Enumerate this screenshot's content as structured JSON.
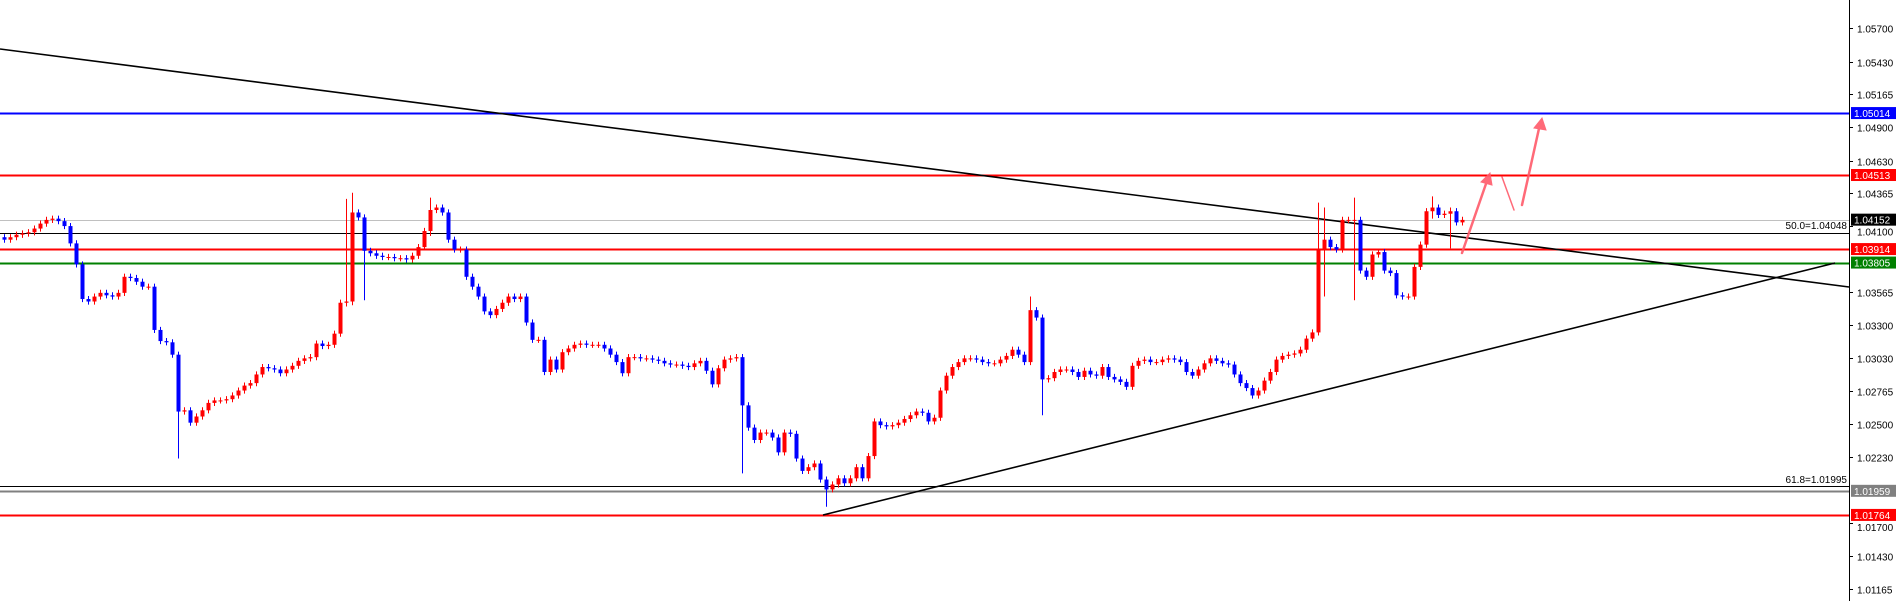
{
  "chart_data": {
    "type": "candlestick",
    "up_color": "#ff0000",
    "down_color": "#0000ff",
    "ylim": [
      1.0105,
      1.059
    ],
    "grid": false,
    "y_ticks": [
      "1.05700",
      "1.05430",
      "1.05165",
      "1.04900",
      "1.04630",
      "1.04365",
      "1.04100",
      "1.03565",
      "1.03300",
      "1.03030",
      "1.02765",
      "1.02500",
      "1.02230",
      "1.01700",
      "1.01430",
      "1.01165"
    ],
    "close": [
      1.0399,
      1.0401,
      1.0403,
      1.0404,
      1.0405,
      1.0408,
      1.0412,
      1.0415,
      1.0416,
      1.0414,
      1.041,
      1.0396,
      1.0379,
      1.0351,
      1.0349,
      1.0353,
      1.0356,
      1.0354,
      1.0353,
      1.0356,
      1.0369,
      1.0368,
      1.0365,
      1.0361,
      1.0361,
      1.0326,
      1.0317,
      1.0316,
      1.0306,
      1.026,
      1.0261,
      1.0251,
      1.0256,
      1.0261,
      1.0267,
      1.0269,
      1.0269,
      1.027,
      1.0273,
      1.0277,
      1.0281,
      1.0283,
      1.029,
      1.0296,
      1.0295,
      1.0294,
      1.0291,
      1.0294,
      1.0297,
      1.0301,
      1.0303,
      1.0304,
      1.0315,
      1.0313,
      1.0314,
      1.0323,
      1.0348,
      1.0349,
      1.0421,
      1.0417,
      1.039,
      1.0388,
      1.0386,
      1.0385,
      1.0385,
      1.0384,
      1.0384,
      1.0383,
      1.0386,
      1.0393,
      1.0406,
      1.0423,
      1.0425,
      1.0421,
      1.0399,
      1.0391,
      1.0391,
      1.0369,
      1.0361,
      1.0353,
      1.0341,
      1.0338,
      1.0343,
      1.0348,
      1.0353,
      1.0351,
      1.0353,
      1.0332,
      1.0318,
      1.0318,
      1.0292,
      1.0302,
      1.0294,
      1.0308,
      1.0311,
      1.0314,
      1.0315,
      1.0314,
      1.0314,
      1.0314,
      1.0311,
      1.0306,
      1.03,
      1.0291,
      1.0304,
      1.0304,
      1.0303,
      1.0303,
      1.0302,
      1.0301,
      1.0299,
      1.0298,
      1.0298,
      1.0297,
      1.0296,
      1.0299,
      1.0301,
      1.0293,
      1.0282,
      1.0295,
      1.0302,
      1.0303,
      1.0304,
      1.0265,
      1.0247,
      1.0237,
      1.0243,
      1.0243,
      1.0239,
      1.0227,
      1.0243,
      1.0242,
      1.0222,
      1.0212,
      1.0215,
      1.0218,
      1.0205,
      1.0197,
      1.0201,
      1.0206,
      1.0202,
      1.0206,
      1.0215,
      1.0206,
      1.0224,
      1.0252,
      1.0249,
      1.0248,
      1.0249,
      1.0251,
      1.0254,
      1.0257,
      1.026,
      1.0259,
      1.0252,
      1.0255,
      1.0277,
      1.0289,
      1.0296,
      1.03,
      1.0303,
      1.0303,
      1.0302,
      1.03,
      1.0299,
      1.0299,
      1.0302,
      1.0305,
      1.031,
      1.0306,
      1.03,
      1.0342,
      1.0336,
      1.0286,
      1.0287,
      1.0292,
      1.0294,
      1.0294,
      1.0292,
      1.0288,
      1.0293,
      1.029,
      1.0289,
      1.0296,
      1.0288,
      1.0286,
      1.0284,
      1.028,
      1.0297,
      1.0301,
      1.0302,
      1.03,
      1.03,
      1.0302,
      1.0303,
      1.0302,
      1.03,
      1.0292,
      1.0289,
      1.0294,
      1.0299,
      1.0303,
      1.0301,
      1.0299,
      1.0298,
      1.029,
      1.0283,
      1.0279,
      1.0273,
      1.0277,
      1.0285,
      1.0292,
      1.0302,
      1.0305,
      1.0306,
      1.0307,
      1.031,
      1.0319,
      1.0324,
      1.0391,
      1.0399,
      1.0393,
      1.0391,
      1.0415,
      1.0415,
      1.0415,
      1.0374,
      1.0369,
      1.0387,
      1.0389,
      1.0374,
      1.0372,
      1.0354,
      1.0353,
      1.0353,
      1.0377,
      1.0395,
      1.0422,
      1.0425,
      1.0419,
      1.042,
      1.0422,
      1.0413,
      1.0415
    ],
    "wick_extremes": [
      {
        "index": 29,
        "high": 1.0262,
        "low": 1.0222
      },
      {
        "index": 57,
        "high": 1.0432,
        "low": 1.0345
      },
      {
        "index": 58,
        "high": 1.0437,
        "low": 1.0346
      },
      {
        "index": 60,
        "high": 1.0418,
        "low": 1.035
      },
      {
        "index": 71,
        "high": 1.0433,
        "low": 1.0402
      },
      {
        "index": 123,
        "high": 1.0305,
        "low": 1.021
      },
      {
        "index": 137,
        "high": 1.0205,
        "low": 1.0183
      },
      {
        "index": 171,
        "high": 1.0353,
        "low": 1.0299
      },
      {
        "index": 173,
        "high": 1.0338,
        "low": 1.0257
      },
      {
        "index": 219,
        "high": 1.0429,
        "low": 1.0322
      },
      {
        "index": 220,
        "high": 1.0425,
        "low": 1.0353
      },
      {
        "index": 225,
        "high": 1.0433,
        "low": 1.035
      },
      {
        "index": 238,
        "high": 1.0434,
        "low": 1.0416
      },
      {
        "index": 241,
        "high": 1.0425,
        "low": 1.0392
      }
    ],
    "levels": [
      {
        "price": 1.05014,
        "label": "1.05014",
        "color": "#0000ff",
        "tag": true
      },
      {
        "price": 1.04513,
        "label": "1.04513",
        "color": "#ff0000",
        "tag": true
      },
      {
        "price": 1.04152,
        "label": "1.04152",
        "color": "#c0c0c0",
        "tag_color": "#000000",
        "tag": true
      },
      {
        "price": 1.04048,
        "label": "",
        "color": "#000000",
        "tag": false
      },
      {
        "price": 1.03914,
        "label": "1.03914",
        "color": "#ff0000",
        "tag": true
      },
      {
        "price": 1.03805,
        "label": "1.03805",
        "color": "#008000",
        "tag": true
      },
      {
        "price": 1.01995,
        "label": "",
        "color": "#000000",
        "tag": false
      },
      {
        "price": 1.01959,
        "label": "1.01959",
        "color": "#808080",
        "tag": true
      },
      {
        "price": 1.01764,
        "label": "1.01764",
        "color": "#ff0000",
        "tag": true
      }
    ],
    "fib_labels": {
      "fib50": "50.0=1.04048",
      "fib618": "61.8=1.01995"
    },
    "annotation_color": "#ff5a6a"
  }
}
